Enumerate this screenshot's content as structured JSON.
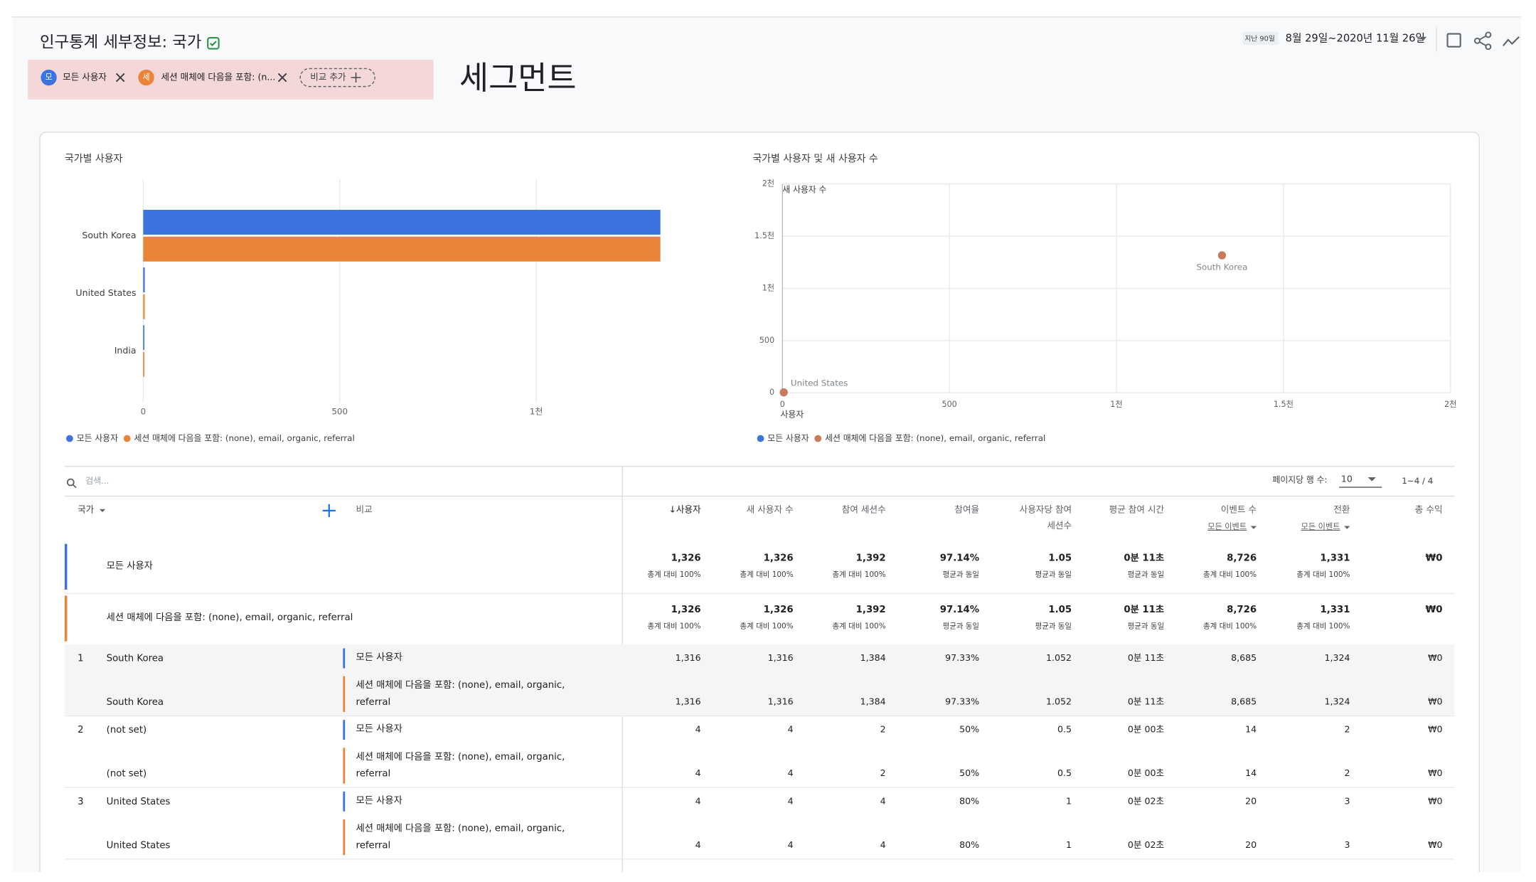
{
  "header": {
    "title": "인구통계 세부정보: 국가",
    "date_prefix": "지난 90일",
    "date_range": "8월 29일~2020년 11월 26일"
  },
  "segments": {
    "chips": [
      {
        "initial": "모",
        "label": "모든 사용자"
      },
      {
        "initial": "세",
        "label": "세션 매체에 다음을 포함: (n..."
      }
    ],
    "add_compare": "비교 추가",
    "annotation": "세그먼트"
  },
  "chart_data": [
    {
      "type": "hbar",
      "title": "국가별 사용자",
      "categories": [
        "South Korea",
        "United States",
        "India"
      ],
      "series": [
        {
          "name": "모든 사용자",
          "color": "#3b73e0",
          "values": [
            1316,
            4,
            3
          ]
        },
        {
          "name": "세션 매체에 다음을 포함: (none), email, organic, referral",
          "color": "#ea8439",
          "values": [
            1316,
            4,
            3
          ]
        }
      ],
      "xlim": [
        0,
        1500
      ],
      "xticks": [
        0,
        500,
        {
          "value": 1000,
          "label": "1천"
        }
      ],
      "grid": true
    },
    {
      "type": "scatter",
      "title": "국가별 사용자 및 새 사용자 수",
      "x_label": "사용자",
      "y_label": "새 사용자 수",
      "point_labels": [
        "South Korea",
        "United States"
      ],
      "series": [
        {
          "name": "모든 사용자",
          "color": "#3b73e0",
          "x": [
            1316,
            4
          ],
          "y": [
            1316,
            4
          ]
        },
        {
          "name": "세션 매체에 다음을 포함: (none), email, organic, referral",
          "color": "#c97b57",
          "x": [
            1316,
            4
          ],
          "y": [
            1316,
            4
          ]
        }
      ],
      "xlim": [
        0,
        2000
      ],
      "xticks": [
        0,
        500,
        {
          "value": 1000,
          "label": "1천"
        },
        {
          "value": 1500,
          "label": "1.5천"
        },
        {
          "value": 2000,
          "label": "2천"
        }
      ],
      "ylim": [
        0,
        2000
      ],
      "yticks": [
        0,
        500,
        {
          "value": 1000,
          "label": "1천"
        },
        {
          "value": 1500,
          "label": "1.5천"
        },
        {
          "value": 2000,
          "label": "2천"
        }
      ],
      "grid": true
    }
  ],
  "table": {
    "search_placeholder": "검색...",
    "rows_per_page_label": "페이지당 행 수:",
    "rows_per_page": "10",
    "pagination": "1~4 / 4",
    "dimension": "국가",
    "compare": "비교",
    "columns": [
      {
        "lines": [
          "↓사용자"
        ]
      },
      {
        "lines": [
          "새 사용자 수"
        ]
      },
      {
        "lines": [
          "참여 세션수"
        ]
      },
      {
        "lines": [
          "참여율"
        ]
      },
      {
        "lines": [
          "사용자당 참여",
          "세션수"
        ]
      },
      {
        "lines": [
          "평균 참여 시간"
        ]
      },
      {
        "lines": [
          "이벤트 수"
        ],
        "sub": "모든 이벤트"
      },
      {
        "lines": [
          "전환"
        ],
        "sub": "모든 이벤트"
      },
      {
        "lines": [
          "총 수익"
        ]
      }
    ],
    "totals": [
      {
        "name": "모든 사용자",
        "values": [
          "1,326",
          "1,326",
          "1,392",
          "97.14%",
          "1.05",
          "0분 11초",
          "8,726",
          "1,331",
          "₩0"
        ],
        "notes": [
          "총계 대비 100%",
          "총계 대비 100%",
          "총계 대비 100%",
          "평균과 동일",
          "평균과 동일",
          "평균과 동일",
          "총계 대비 100%",
          "총계 대비 100%"
        ]
      },
      {
        "name": "세션 매체에 다음을 포함: (none), email, organic, referral",
        "values": [
          "1,326",
          "1,326",
          "1,392",
          "97.14%",
          "1.05",
          "0분 11초",
          "8,726",
          "1,331",
          "₩0"
        ],
        "notes": [
          "총계 대비 100%",
          "총계 대비 100%",
          "총계 대비 100%",
          "평균과 동일",
          "평균과 동일",
          "평균과 동일",
          "총계 대비 100%",
          "총계 대비 100%"
        ]
      }
    ],
    "rows": [
      {
        "rank": "1",
        "country": [
          "South Korea",
          "South Korea"
        ],
        "segments": [
          {
            "lines": [
              "모든 사용자"
            ],
            "values": [
              "1,316",
              "1,316",
              "1,384",
              "97.33%",
              "1.052",
              "0분 11초",
              "8,685",
              "1,324",
              "₩0"
            ]
          },
          {
            "lines": [
              "세션 매체에 다음을 포함: (none), email, organic,",
              "referral"
            ],
            "values": [
              "1,316",
              "1,316",
              "1,384",
              "97.33%",
              "1.052",
              "0분 11초",
              "8,685",
              "1,324",
              "₩0"
            ]
          }
        ]
      },
      {
        "rank": "2",
        "country": [
          "(not set)",
          "(not set)"
        ],
        "segments": [
          {
            "lines": [
              "모든 사용자"
            ],
            "values": [
              "4",
              "4",
              "2",
              "50%",
              "0.5",
              "0분 00초",
              "14",
              "2",
              "₩0"
            ]
          },
          {
            "lines": [
              "세션 매체에 다음을 포함: (none), email, organic,",
              "referral"
            ],
            "values": [
              "4",
              "4",
              "2",
              "50%",
              "0.5",
              "0분 00초",
              "14",
              "2",
              "₩0"
            ]
          }
        ]
      },
      {
        "rank": "3",
        "country": [
          "United States",
          "United States"
        ],
        "segments": [
          {
            "lines": [
              "모든 사용자"
            ],
            "values": [
              "4",
              "4",
              "4",
              "80%",
              "1",
              "0분 02초",
              "20",
              "3",
              "₩0"
            ]
          },
          {
            "lines": [
              "세션 매체에 다음을 포함: (none), email, organic,",
              "referral"
            ],
            "values": [
              "4",
              "4",
              "4",
              "80%",
              "1",
              "0분 02초",
              "20",
              "3",
              "₩0"
            ]
          }
        ]
      }
    ]
  }
}
